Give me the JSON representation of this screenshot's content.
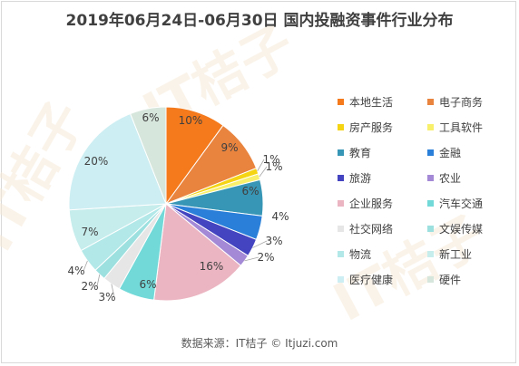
{
  "page": {
    "title": "2019年06月24日-06月30日 国内投融资事件行业分布",
    "source": "数据来源：IT桔子 © Itjuzi.com",
    "watermark": "IT桔子"
  },
  "chart_data": {
    "type": "pie",
    "title": "2019年06月24日-06月30日 国内投融资事件行业分布",
    "legend_position": "right",
    "slices": [
      {
        "label": "本地生活",
        "value": 10,
        "color": "#f47a1c"
      },
      {
        "label": "电子商务",
        "value": 9,
        "color": "#e9843f"
      },
      {
        "label": "房产服务",
        "value": 1,
        "color": "#f5d414"
      },
      {
        "label": "工具软件",
        "value": 1,
        "color": "#f8f06b"
      },
      {
        "label": "教育",
        "value": 6,
        "color": "#3796b5"
      },
      {
        "label": "金融",
        "value": 4,
        "color": "#2a80d8"
      },
      {
        "label": "旅游",
        "value": 3,
        "color": "#4444c0"
      },
      {
        "label": "农业",
        "value": 2,
        "color": "#a48ad6"
      },
      {
        "label": "企业服务",
        "value": 16,
        "color": "#ebb6c2"
      },
      {
        "label": "汽车交通",
        "value": 6,
        "color": "#73d8d8"
      },
      {
        "label": "社交网络",
        "value": 3,
        "color": "#e6e6e6"
      },
      {
        "label": "文娱传媒",
        "value": 2,
        "color": "#9de0e0"
      },
      {
        "label": "物流",
        "value": 4,
        "color": "#b2e8e8"
      },
      {
        "label": "新工业",
        "value": 7,
        "color": "#c6ecec"
      },
      {
        "label": "医疗健康",
        "value": 20,
        "color": "#cdeef2"
      },
      {
        "label": "硬件",
        "value": 6,
        "color": "#d6e6dc"
      }
    ],
    "data_labels": [
      "10%",
      "9%",
      "1%",
      "1%",
      "6%",
      "4%",
      "3%",
      "2%",
      "16%",
      "6%",
      "3%",
      "2%",
      "4%",
      "7%",
      "20%",
      "6%"
    ]
  }
}
